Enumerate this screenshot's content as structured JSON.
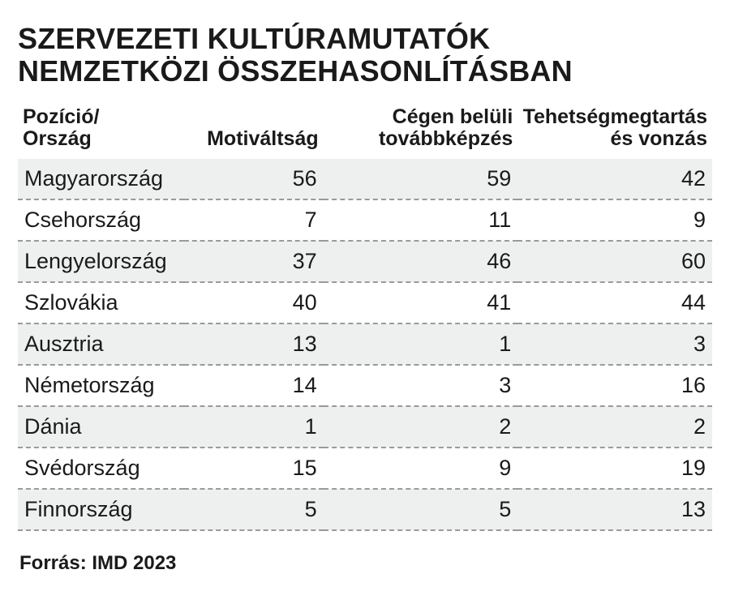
{
  "title_line1": "SZERVEZETI KULTÚRAMUTATÓK",
  "title_line2": "NEMZETKÖZI ÖSSZEHASONLÍTÁSBAN",
  "table": {
    "type": "table",
    "background_color": "#ffffff",
    "zebra_color": "#eef0ef",
    "border_dash_color": "#9a9a9a",
    "text_color": "#1a1a1a",
    "header_fontsize_pt": 18,
    "cell_fontsize_pt": 20,
    "columns": [
      {
        "label_line1": "Pozíció/",
        "label_line2": "Ország",
        "align": "left"
      },
      {
        "label_line1": "",
        "label_line2": "Motiváltság",
        "align": "right"
      },
      {
        "label_line1": "Cégen belüli",
        "label_line2": "továbbképzés",
        "align": "right"
      },
      {
        "label_line1": "Tehetségmegtartás",
        "label_line2": "és vonzás",
        "align": "right"
      }
    ],
    "rows": [
      {
        "country": "Magyarország",
        "v1": "56",
        "v2": "59",
        "v3": "42"
      },
      {
        "country": "Csehország",
        "v1": "7",
        "v2": "11",
        "v3": "9"
      },
      {
        "country": "Lengyelország",
        "v1": "37",
        "v2": "46",
        "v3": "60"
      },
      {
        "country": "Szlovákia",
        "v1": "40",
        "v2": "41",
        "v3": "44"
      },
      {
        "country": "Ausztria",
        "v1": "13",
        "v2": "1",
        "v3": "3"
      },
      {
        "country": "Németország",
        "v1": "14",
        "v2": "3",
        "v3": "16"
      },
      {
        "country": "Dánia",
        "v1": "1",
        "v2": "2",
        "v3": "2"
      },
      {
        "country": "Svédország",
        "v1": "15",
        "v2": "9",
        "v3": "19"
      },
      {
        "country": "Finnország",
        "v1": "5",
        "v2": "5",
        "v3": "13"
      }
    ]
  },
  "source": "Forrás: IMD 2023"
}
